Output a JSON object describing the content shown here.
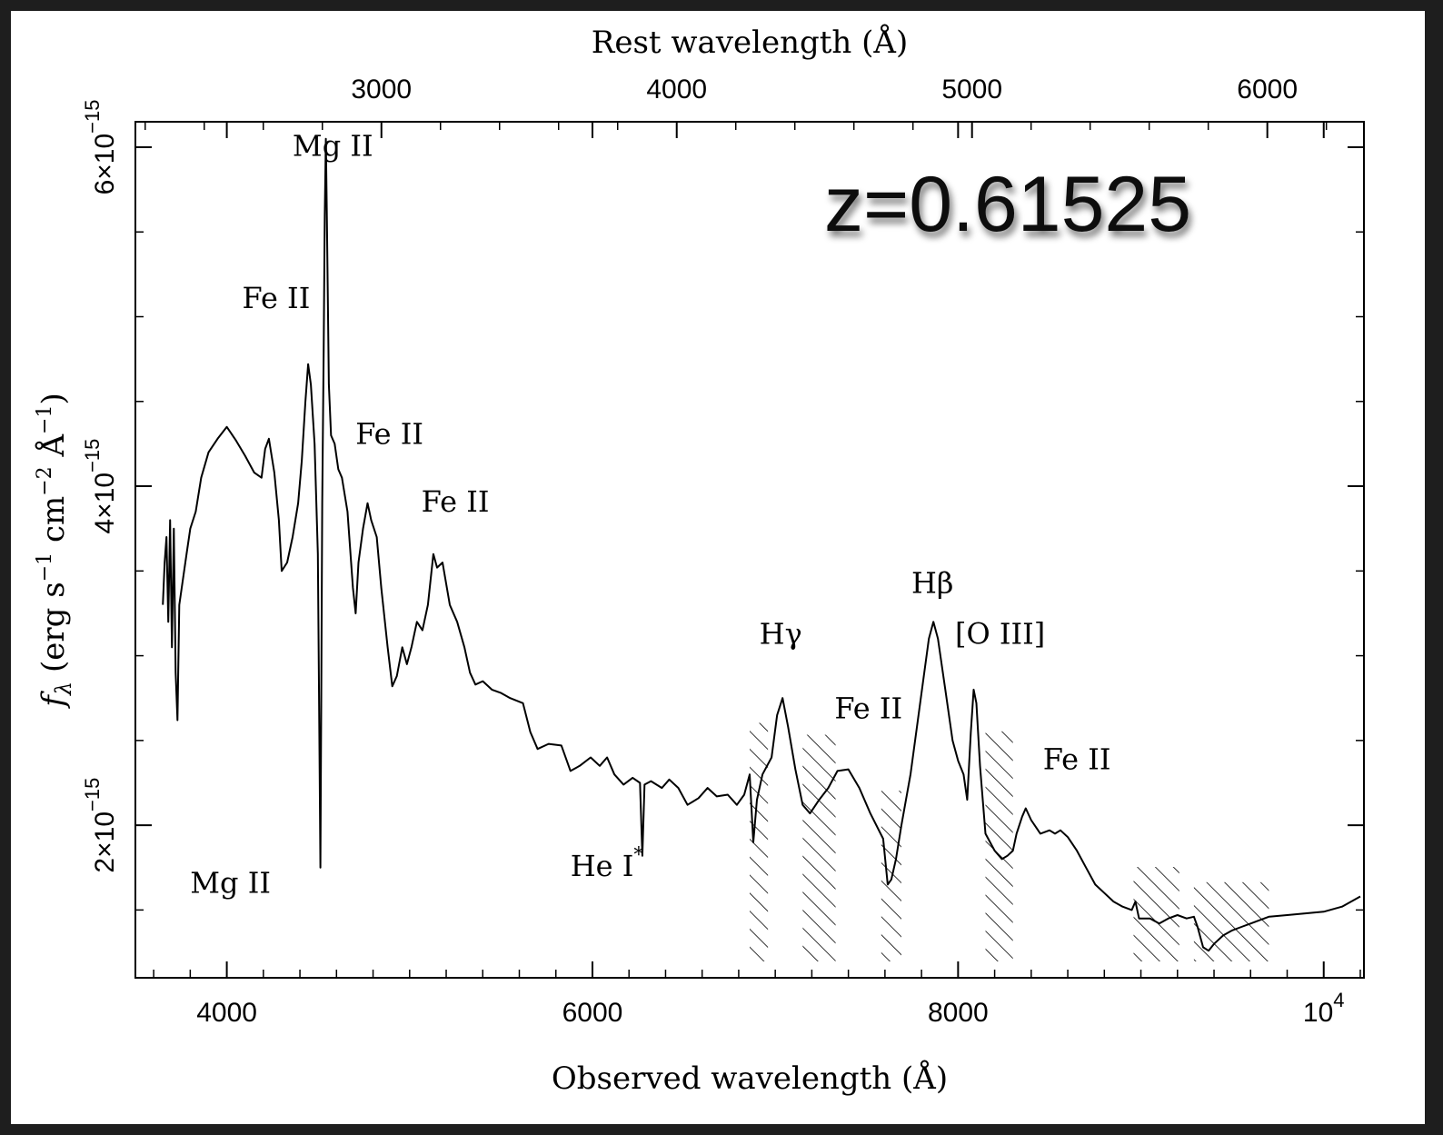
{
  "chart_data": {
    "type": "line",
    "title": "",
    "xlabel": "Observed wavelength (Å)",
    "x2label": "Rest wavelength (Å)",
    "ylabel_base": "f",
    "ylabel_sub": "λ",
    "ylabel_units": "(erg s",
    "ylabel_u1_sup": "−1",
    "ylabel_u2": " cm",
    "ylabel_u2_sup": "−2",
    "ylabel_u3": " Å",
    "ylabel_u3_sup": "−1",
    "ylabel_close": ")",
    "annotation": "z=0.61525",
    "xlim": [
      3500,
      10220
    ],
    "ylim": [
      1.1e-15,
      6.15e-15
    ],
    "redshift": 0.61525,
    "x_ticks_major": [
      {
        "value": 4000,
        "label": "4000"
      },
      {
        "value": 6000,
        "label": "6000"
      },
      {
        "value": 8000,
        "label": "8000"
      },
      {
        "value": 10000,
        "label_base": "10",
        "label_sup": "4"
      }
    ],
    "x2_ticks_major": [
      {
        "value": 3000,
        "label": "3000"
      },
      {
        "value": 4000,
        "label": "4000"
      },
      {
        "value": 5000,
        "label": "5000"
      },
      {
        "value": 6000,
        "label": "6000"
      }
    ],
    "y_ticks_major": [
      {
        "value": 2e-15,
        "label_base": "2×10",
        "label_sup": "−15"
      },
      {
        "value": 4e-15,
        "label_base": "4×10",
        "label_sup": "−15"
      },
      {
        "value": 6e-15,
        "label_base": "6×10",
        "label_sup": "−15"
      }
    ],
    "line_labels": [
      {
        "text": "Mg II",
        "x": 4580,
        "y": 5.95e-15
      },
      {
        "text": "Fe II",
        "x": 4270,
        "y": 5.05e-15
      },
      {
        "text": "Fe II",
        "x": 4890,
        "y": 4.25e-15
      },
      {
        "text": "Fe II",
        "x": 5250,
        "y": 3.85e-15
      },
      {
        "text": "Mg II",
        "x": 4020,
        "y": 1.6e-15
      },
      {
        "text": "He I",
        "sup": "*",
        "x": 6080,
        "y": 1.7e-15
      },
      {
        "text": "Hγ",
        "x": 7030,
        "y": 3.07e-15
      },
      {
        "text": "Fe II",
        "x": 7510,
        "y": 2.63e-15
      },
      {
        "text": "Hβ",
        "x": 7860,
        "y": 3.37e-15
      },
      {
        "text": "[O III]",
        "x": 8230,
        "y": 3.07e-15
      },
      {
        "text": "Fe II",
        "x": 8650,
        "y": 2.33e-15
      }
    ],
    "hatched_regions": [
      [
        6860,
        6960
      ],
      [
        7150,
        7330
      ],
      [
        7580,
        7690
      ],
      [
        8150,
        8300
      ],
      [
        8960,
        9210
      ],
      [
        9290,
        9700
      ]
    ],
    "series": [
      {
        "points": [
          [
            3650,
            3.3e-15
          ],
          [
            3660,
            3.55e-15
          ],
          [
            3670,
            3.7e-15
          ],
          [
            3680,
            3.2e-15
          ],
          [
            3690,
            3.8e-15
          ],
          [
            3700,
            3.05e-15
          ],
          [
            3710,
            3.75e-15
          ],
          [
            3720,
            2.9e-15
          ],
          [
            3730,
            2.62e-15
          ],
          [
            3740,
            3.3e-15
          ],
          [
            3760,
            3.45e-15
          ],
          [
            3780,
            3.6e-15
          ],
          [
            3800,
            3.75e-15
          ],
          [
            3830,
            3.85e-15
          ],
          [
            3860,
            4.05e-15
          ],
          [
            3900,
            4.2e-15
          ],
          [
            3950,
            4.28e-15
          ],
          [
            4000,
            4.35e-15
          ],
          [
            4050,
            4.27e-15
          ],
          [
            4100,
            4.18e-15
          ],
          [
            4150,
            4.08e-15
          ],
          [
            4190,
            4.05e-15
          ],
          [
            4210,
            4.22e-15
          ],
          [
            4230,
            4.28e-15
          ],
          [
            4260,
            4.08e-15
          ],
          [
            4285,
            3.8e-15
          ],
          [
            4300,
            3.5e-15
          ],
          [
            4330,
            3.55e-15
          ],
          [
            4360,
            3.7e-15
          ],
          [
            4390,
            3.9e-15
          ],
          [
            4410,
            4.15e-15
          ],
          [
            4430,
            4.5e-15
          ],
          [
            4445,
            4.72e-15
          ],
          [
            4460,
            4.6e-15
          ],
          [
            4480,
            4.25e-15
          ],
          [
            4498,
            3.6e-15
          ],
          [
            4508,
            2.3e-15
          ],
          [
            4512,
            1.75e-15
          ],
          [
            4516,
            2.6e-15
          ],
          [
            4522,
            3.9e-15
          ],
          [
            4530,
            4.8e-15
          ],
          [
            4536,
            5.6e-15
          ],
          [
            4542,
            6.05e-15
          ],
          [
            4548,
            5.55e-15
          ],
          [
            4558,
            4.6e-15
          ],
          [
            4570,
            4.3e-15
          ],
          [
            4590,
            4.25e-15
          ],
          [
            4610,
            4.1e-15
          ],
          [
            4630,
            4.05e-15
          ],
          [
            4660,
            3.85e-15
          ],
          [
            4690,
            3.4e-15
          ],
          [
            4705,
            3.25e-15
          ],
          [
            4720,
            3.55e-15
          ],
          [
            4745,
            3.75e-15
          ],
          [
            4770,
            3.9e-15
          ],
          [
            4790,
            3.8e-15
          ],
          [
            4820,
            3.7e-15
          ],
          [
            4845,
            3.4e-15
          ],
          [
            4880,
            3.05e-15
          ],
          [
            4905,
            2.82e-15
          ],
          [
            4930,
            2.88e-15
          ],
          [
            4960,
            3.05e-15
          ],
          [
            4985,
            2.95e-15
          ],
          [
            5010,
            3.05e-15
          ],
          [
            5040,
            3.2e-15
          ],
          [
            5070,
            3.15e-15
          ],
          [
            5100,
            3.3e-15
          ],
          [
            5130,
            3.6e-15
          ],
          [
            5150,
            3.52e-15
          ],
          [
            5180,
            3.55e-15
          ],
          [
            5220,
            3.3e-15
          ],
          [
            5260,
            3.2e-15
          ],
          [
            5300,
            3.05e-15
          ],
          [
            5330,
            2.9e-15
          ],
          [
            5360,
            2.83e-15
          ],
          [
            5400,
            2.85e-15
          ],
          [
            5450,
            2.8e-15
          ],
          [
            5500,
            2.78e-15
          ],
          [
            5550,
            2.75e-15
          ],
          [
            5620,
            2.72e-15
          ],
          [
            5660,
            2.55e-15
          ],
          [
            5700,
            2.45e-15
          ],
          [
            5760,
            2.48e-15
          ],
          [
            5830,
            2.47e-15
          ],
          [
            5880,
            2.32e-15
          ],
          [
            5930,
            2.35e-15
          ],
          [
            5990,
            2.4e-15
          ],
          [
            6040,
            2.35e-15
          ],
          [
            6080,
            2.4e-15
          ],
          [
            6120,
            2.3e-15
          ],
          [
            6170,
            2.24e-15
          ],
          [
            6220,
            2.28e-15
          ],
          [
            6260,
            2.25e-15
          ],
          [
            6273,
            1.82e-15
          ],
          [
            6285,
            2.24e-15
          ],
          [
            6320,
            2.26e-15
          ],
          [
            6380,
            2.22e-15
          ],
          [
            6420,
            2.27e-15
          ],
          [
            6470,
            2.22e-15
          ],
          [
            6520,
            2.12e-15
          ],
          [
            6580,
            2.16e-15
          ],
          [
            6630,
            2.22e-15
          ],
          [
            6680,
            2.17e-15
          ],
          [
            6740,
            2.18e-15
          ],
          [
            6790,
            2.12e-15
          ],
          [
            6830,
            2.18e-15
          ],
          [
            6860,
            2.3e-15
          ],
          [
            6880,
            1.9e-15
          ],
          [
            6900,
            2.15e-15
          ],
          [
            6930,
            2.3e-15
          ],
          [
            6980,
            2.4e-15
          ],
          [
            7010,
            2.65e-15
          ],
          [
            7040,
            2.75e-15
          ],
          [
            7070,
            2.58e-15
          ],
          [
            7110,
            2.33e-15
          ],
          [
            7150,
            2.12e-15
          ],
          [
            7190,
            2.07e-15
          ],
          [
            7240,
            2.15e-15
          ],
          [
            7290,
            2.22e-15
          ],
          [
            7340,
            2.32e-15
          ],
          [
            7400,
            2.33e-15
          ],
          [
            7460,
            2.22e-15
          ],
          [
            7520,
            2.07e-15
          ],
          [
            7590,
            1.92e-15
          ],
          [
            7615,
            1.65e-15
          ],
          [
            7635,
            1.68e-15
          ],
          [
            7660,
            1.8e-15
          ],
          [
            7690,
            2e-15
          ],
          [
            7740,
            2.3e-15
          ],
          [
            7790,
            2.7e-15
          ],
          [
            7840,
            3.1e-15
          ],
          [
            7865,
            3.2e-15
          ],
          [
            7890,
            3.1e-15
          ],
          [
            7930,
            2.8e-15
          ],
          [
            7970,
            2.5e-15
          ],
          [
            8000,
            2.38e-15
          ],
          [
            8030,
            2.3e-15
          ],
          [
            8050,
            2.15e-15
          ],
          [
            8070,
            2.55e-15
          ],
          [
            8085,
            2.8e-15
          ],
          [
            8100,
            2.72e-15
          ],
          [
            8120,
            2.35e-15
          ],
          [
            8150,
            1.95e-15
          ],
          [
            8200,
            1.85e-15
          ],
          [
            8240,
            1.8e-15
          ],
          [
            8270,
            1.82e-15
          ],
          [
            8300,
            1.85e-15
          ],
          [
            8320,
            1.95e-15
          ],
          [
            8350,
            2.05e-15
          ],
          [
            8370,
            2.1e-15
          ],
          [
            8400,
            2.03e-15
          ],
          [
            8450,
            1.95e-15
          ],
          [
            8500,
            1.97e-15
          ],
          [
            8530,
            1.95e-15
          ],
          [
            8560,
            1.97e-15
          ],
          [
            8600,
            1.93e-15
          ],
          [
            8650,
            1.85e-15
          ],
          [
            8700,
            1.75e-15
          ],
          [
            8750,
            1.65e-15
          ],
          [
            8800,
            1.6e-15
          ],
          [
            8850,
            1.55e-15
          ],
          [
            8900,
            1.52e-15
          ],
          [
            8950,
            1.5e-15
          ],
          [
            8970,
            1.55e-15
          ],
          [
            8990,
            1.45e-15
          ],
          [
            9050,
            1.45e-15
          ],
          [
            9100,
            1.42e-15
          ],
          [
            9150,
            1.45e-15
          ],
          [
            9200,
            1.47e-15
          ],
          [
            9250,
            1.45e-15
          ],
          [
            9290,
            1.46e-15
          ],
          [
            9310,
            1.4e-15
          ],
          [
            9340,
            1.28e-15
          ],
          [
            9370,
            1.26e-15
          ],
          [
            9400,
            1.3e-15
          ],
          [
            9450,
            1.35e-15
          ],
          [
            9500,
            1.38e-15
          ],
          [
            9550,
            1.4e-15
          ],
          [
            9600,
            1.42e-15
          ],
          [
            9650,
            1.44e-15
          ],
          [
            9700,
            1.46e-15
          ],
          [
            9800,
            1.47e-15
          ],
          [
            9900,
            1.48e-15
          ],
          [
            10000,
            1.49e-15
          ],
          [
            10100,
            1.52e-15
          ],
          [
            10200,
            1.58e-15
          ]
        ]
      }
    ]
  }
}
